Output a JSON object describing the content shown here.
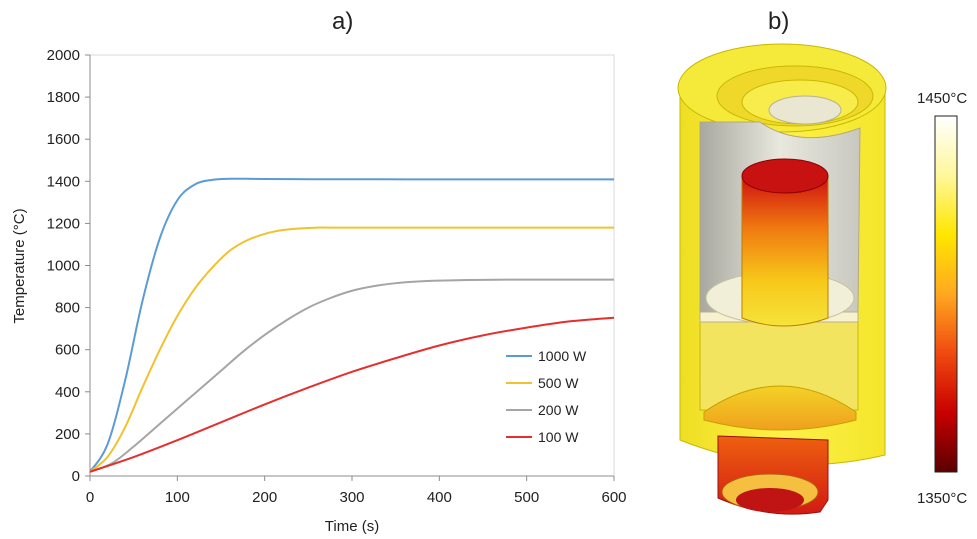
{
  "panel_a_label": "a)",
  "panel_b_label": "b)",
  "chart_data": {
    "type": "line",
    "xlabel": "Time (s)",
    "ylabel": "Temperature (°C)",
    "xlim": [
      0,
      600
    ],
    "ylim": [
      0,
      2000
    ],
    "xticks": [
      0,
      100,
      200,
      300,
      400,
      500,
      600
    ],
    "yticks": [
      0,
      200,
      400,
      600,
      800,
      1000,
      1200,
      1400,
      1600,
      1800,
      2000
    ],
    "grid": false,
    "legend_position": "bottom-right",
    "series": [
      {
        "name": "1000 W",
        "color": "#5b9bd5",
        "x": [
          0,
          20,
          40,
          60,
          80,
          100,
          120,
          140,
          160,
          180,
          200,
          250,
          300,
          400,
          500,
          600
        ],
        "y": [
          20,
          150,
          450,
          830,
          1130,
          1310,
          1385,
          1407,
          1412,
          1412,
          1411,
          1410,
          1410,
          1409,
          1409,
          1409
        ]
      },
      {
        "name": "500 W",
        "color": "#f2c12e",
        "x": [
          0,
          20,
          40,
          60,
          80,
          100,
          120,
          140,
          160,
          180,
          200,
          220,
          240,
          260,
          280,
          300,
          400,
          500,
          600
        ],
        "y": [
          20,
          90,
          230,
          420,
          600,
          760,
          890,
          990,
          1070,
          1120,
          1150,
          1168,
          1176,
          1180,
          1180,
          1180,
          1180,
          1180,
          1180
        ]
      },
      {
        "name": "200 W",
        "color": "#a5a5a5",
        "x": [
          0,
          25,
          50,
          75,
          100,
          125,
          150,
          175,
          200,
          225,
          250,
          275,
          300,
          325,
          350,
          375,
          400,
          450,
          500,
          550,
          600
        ],
        "y": [
          20,
          60,
          140,
          230,
          320,
          410,
          500,
          590,
          670,
          740,
          800,
          845,
          880,
          902,
          916,
          924,
          928,
          932,
          933,
          933,
          933
        ]
      },
      {
        "name": "100 W",
        "color": "#e52f2f",
        "x": [
          0,
          50,
          100,
          150,
          200,
          250,
          300,
          350,
          400,
          450,
          500,
          550,
          600
        ],
        "y": [
          20,
          90,
          170,
          255,
          340,
          420,
          495,
          560,
          620,
          668,
          705,
          735,
          752
        ]
      }
    ]
  },
  "colorbar": {
    "max_label": "1450°C",
    "min_label": "1350°C",
    "colors": [
      "#ffffff",
      "#fff79a",
      "#ffe600",
      "#ffa81f",
      "#f04a10",
      "#c80000",
      "#5a0000"
    ]
  }
}
